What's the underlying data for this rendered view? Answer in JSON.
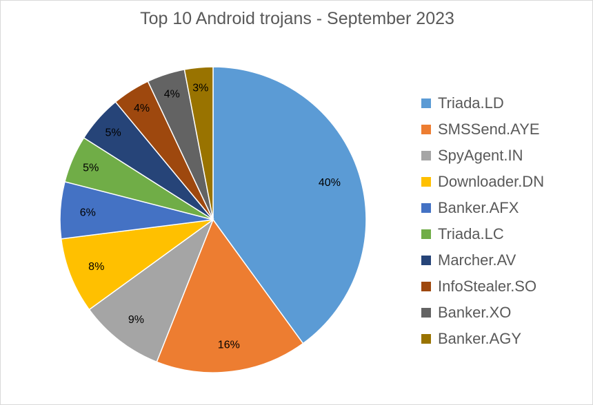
{
  "chart_data": {
    "type": "pie",
    "title": "Top 10 Android trojans - September 2023",
    "legend_position": "right",
    "categories": [
      "Triada.LD",
      "SMSSend.AYE",
      "SpyAgent.IN",
      "Downloader.DN",
      "Banker.AFX",
      "Triada.LC",
      "Marcher.AV",
      "InfoStealer.SO",
      "Banker.XO",
      "Banker.AGY"
    ],
    "values": [
      40,
      16,
      9,
      8,
      6,
      5,
      5,
      4,
      4,
      3
    ],
    "labels": [
      "40%",
      "16%",
      "9%",
      "8%",
      "6%",
      "5%",
      "5%",
      "4%",
      "4%",
      "3%"
    ],
    "colors": [
      "#5B9BD5",
      "#ED7D31",
      "#A5A5A5",
      "#FFC000",
      "#4472C4",
      "#70AD47",
      "#264478",
      "#9E480E",
      "#636363",
      "#997300"
    ]
  }
}
